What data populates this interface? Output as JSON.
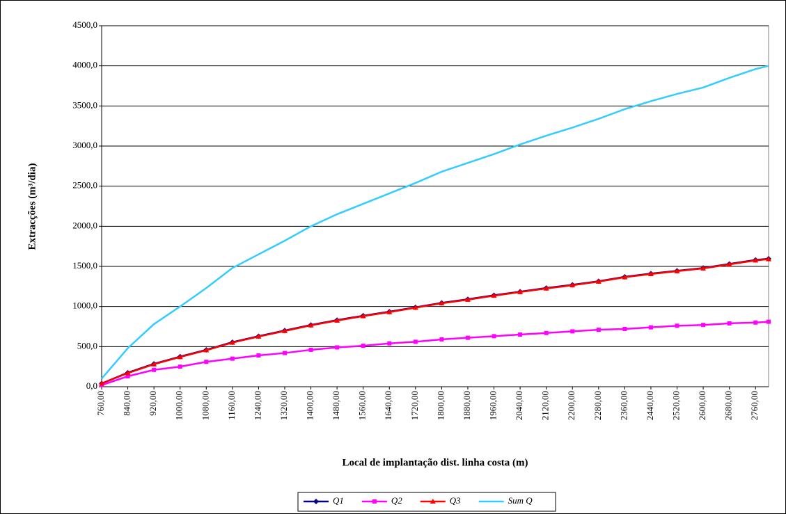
{
  "chart_data": {
    "type": "line",
    "x_label": "Local de implantação dist. linha costa (m)",
    "y_label": "Extracções (m³/dia)",
    "x": [
      760,
      840,
      920,
      1000,
      1080,
      1160,
      1240,
      1320,
      1400,
      1480,
      1560,
      1640,
      1720,
      1800,
      1880,
      1960,
      2040,
      2120,
      2200,
      2280,
      2360,
      2440,
      2520,
      2600,
      2680,
      2760,
      2800
    ],
    "series": [
      {
        "name": "Q1",
        "color": "#000080",
        "marker": "diamond",
        "values": [
          40,
          175,
          285,
          375,
          460,
          555,
          630,
          700,
          770,
          830,
          885,
          935,
          990,
          1045,
          1090,
          1140,
          1185,
          1230,
          1270,
          1315,
          1370,
          1410,
          1445,
          1480,
          1530,
          1580,
          1595
        ]
      },
      {
        "name": "Q2",
        "color": "#ff00ff",
        "marker": "square",
        "values": [
          20,
          130,
          210,
          250,
          310,
          350,
          390,
          420,
          460,
          490,
          510,
          540,
          560,
          590,
          610,
          630,
          650,
          670,
          690,
          710,
          720,
          740,
          760,
          770,
          790,
          800,
          810
        ]
      },
      {
        "name": "Q3",
        "color": "#ff0000",
        "marker": "triangle",
        "values": [
          40,
          170,
          280,
          370,
          455,
          550,
          625,
          695,
          765,
          825,
          880,
          930,
          985,
          1040,
          1085,
          1135,
          1180,
          1225,
          1265,
          1310,
          1365,
          1405,
          1440,
          1475,
          1525,
          1575,
          1590
        ]
      },
      {
        "name": "Sum Q",
        "color": "#33ccff",
        "marker": "none",
        "values": [
          100,
          480,
          780,
          1000,
          1230,
          1480,
          1650,
          1820,
          2000,
          2150,
          2280,
          2410,
          2540,
          2680,
          2790,
          2900,
          3020,
          3130,
          3230,
          3340,
          3460,
          3560,
          3650,
          3730,
          3850,
          3960,
          4000
        ]
      }
    ],
    "xlim": [
      760,
      2800
    ],
    "ylim": [
      0,
      4500
    ],
    "xticks": [
      {
        "value": 760,
        "label": "760,00"
      },
      {
        "value": 840,
        "label": "840,00"
      },
      {
        "value": 920,
        "label": "920,00"
      },
      {
        "value": 1000,
        "label": "1000,00"
      },
      {
        "value": 1080,
        "label": "1080,00"
      },
      {
        "value": 1160,
        "label": "1160,00"
      },
      {
        "value": 1240,
        "label": "1240,00"
      },
      {
        "value": 1320,
        "label": "1320,00"
      },
      {
        "value": 1400,
        "label": "1400,00"
      },
      {
        "value": 1480,
        "label": "1480,00"
      },
      {
        "value": 1560,
        "label": "1560,00"
      },
      {
        "value": 1640,
        "label": "1640,00"
      },
      {
        "value": 1720,
        "label": "1720,00"
      },
      {
        "value": 1800,
        "label": "1800,00"
      },
      {
        "value": 1880,
        "label": "1880,00"
      },
      {
        "value": 1960,
        "label": "1960,00"
      },
      {
        "value": 2040,
        "label": "2040,00"
      },
      {
        "value": 2120,
        "label": "2120,00"
      },
      {
        "value": 2200,
        "label": "2200,00"
      },
      {
        "value": 2280,
        "label": "2280,00"
      },
      {
        "value": 2360,
        "label": "2360,00"
      },
      {
        "value": 2440,
        "label": "2440,00"
      },
      {
        "value": 2520,
        "label": "2520,00"
      },
      {
        "value": 2600,
        "label": "2600,00"
      },
      {
        "value": 2680,
        "label": "2680,00"
      },
      {
        "value": 2760,
        "label": "2760,00"
      }
    ],
    "yticks": [
      {
        "value": 0,
        "label": "0,0"
      },
      {
        "value": 500,
        "label": "500,0"
      },
      {
        "value": 1000,
        "label": "1000,0"
      },
      {
        "value": 1500,
        "label": "1500,0"
      },
      {
        "value": 2000,
        "label": "2000,0"
      },
      {
        "value": 2500,
        "label": "2500,0"
      },
      {
        "value": 3000,
        "label": "3000,0"
      },
      {
        "value": 3500,
        "label": "3500,0"
      },
      {
        "value": 4000,
        "label": "4000,0"
      },
      {
        "value": 4500,
        "label": "4500,0"
      }
    ],
    "grid": true,
    "legend": "bottom"
  }
}
